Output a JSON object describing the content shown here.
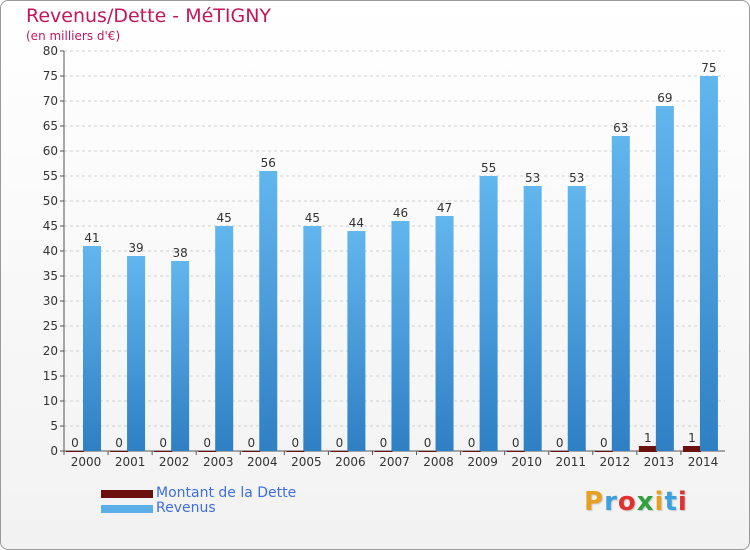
{
  "header": {
    "title": "Revenus/Dette - MéTIGNY",
    "subtitle": "(en milliers d'€)"
  },
  "logo": {
    "text": "Proxiti",
    "colors": [
      "#e8a020",
      "#3aa0e0",
      "#e03030",
      "#30a040",
      "#e8a020",
      "#3aa0e0",
      "#e03030"
    ]
  },
  "colors": {
    "debt": "#6b0f0f",
    "revenue": "#5aafe8",
    "title": "#c2185b",
    "legend_text": "#3f6ee0"
  },
  "chart_data": {
    "type": "bar",
    "title": "Revenus/Dette - MéTIGNY",
    "subtitle": "(en milliers d'€)",
    "categories": [
      "2000",
      "2001",
      "2002",
      "2003",
      "2004",
      "2005",
      "2006",
      "2007",
      "2008",
      "2009",
      "2010",
      "2011",
      "2012",
      "2013",
      "2014"
    ],
    "series": [
      {
        "name": "Montant de la Dette",
        "values": [
          0,
          0,
          0,
          0,
          0,
          0,
          0,
          0,
          0,
          0,
          0,
          0,
          0,
          1,
          1
        ]
      },
      {
        "name": "Revenus",
        "values": [
          41,
          39,
          38,
          45,
          56,
          45,
          44,
          46,
          47,
          55,
          53,
          53,
          63,
          69,
          75
        ]
      }
    ],
    "ylim": [
      0,
      80
    ],
    "yticks": [
      0,
      5,
      10,
      15,
      20,
      25,
      30,
      35,
      40,
      45,
      50,
      55,
      60,
      65,
      70,
      75,
      80
    ],
    "grid": true,
    "legend": "bottom-left"
  }
}
